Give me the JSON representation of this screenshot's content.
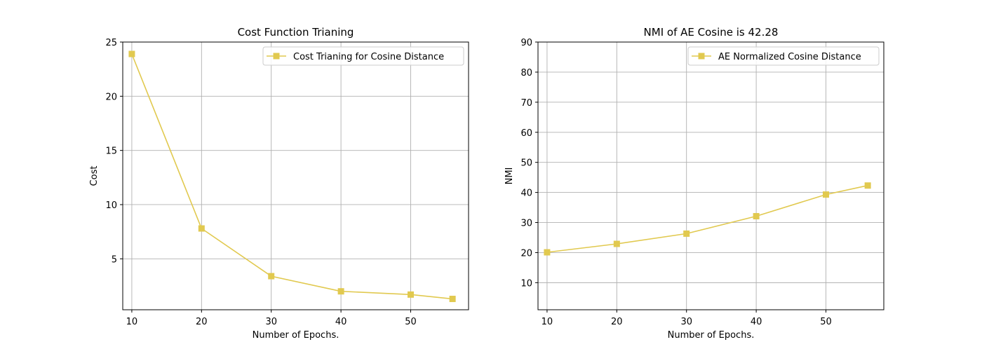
{
  "chart_data": [
    {
      "type": "line",
      "title": "Cost Function Trianing",
      "xlabel": "Number of Epochs.",
      "ylabel": "Cost",
      "xlim": [
        8.7,
        58.3
      ],
      "ylim": [
        0.3,
        25.0
      ],
      "xticks": [
        10,
        20,
        30,
        40,
        50
      ],
      "yticks": [
        5,
        10,
        15,
        20,
        25
      ],
      "grid": true,
      "legend_position": "top-right",
      "series": [
        {
          "name": "Cost Trianing for Cosine Distance",
          "color": "#e1c94f",
          "marker": "square",
          "x": [
            10,
            20,
            30,
            40,
            50,
            56
          ],
          "y": [
            23.9,
            7.8,
            3.4,
            2.0,
            1.7,
            1.3
          ]
        }
      ]
    },
    {
      "type": "line",
      "title": "NMI of AE Cosine is 42.28",
      "xlabel": "Number of Epochs.",
      "ylabel": "NMI",
      "xlim": [
        8.7,
        58.3
      ],
      "ylim": [
        1.0,
        90.0
      ],
      "xticks": [
        10,
        20,
        30,
        40,
        50
      ],
      "yticks": [
        10,
        20,
        30,
        40,
        50,
        60,
        70,
        80,
        90
      ],
      "grid": true,
      "legend_position": "top-right",
      "series": [
        {
          "name": "AE Normalized Cosine Distance",
          "color": "#e1c94f",
          "marker": "square",
          "x": [
            10,
            20,
            30,
            40,
            50,
            56
          ],
          "y": [
            20.1,
            22.9,
            26.3,
            32.1,
            39.3,
            42.3
          ]
        }
      ]
    }
  ]
}
